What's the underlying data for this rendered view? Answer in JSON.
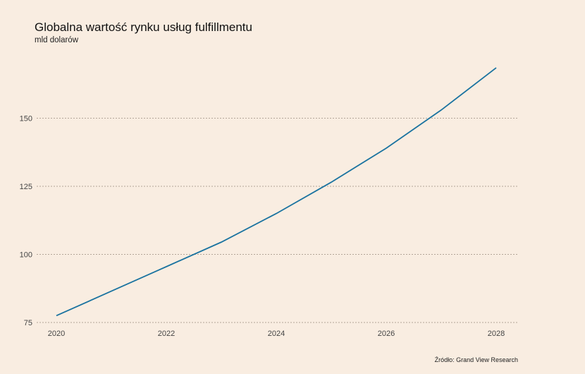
{
  "chart_data": {
    "type": "line",
    "title": "Globalna wartość rynku usług fulfillmentu",
    "subtitle": "mld dolarów",
    "source": "Źródło: Grand View Research",
    "xlabel": "",
    "ylabel": "",
    "x": [
      2020,
      2021,
      2022,
      2023,
      2024,
      2025,
      2026,
      2027,
      2028
    ],
    "series": [
      {
        "values": [
          77.5,
          86.5,
          95.5,
          104.5,
          115,
          126.5,
          139,
          153,
          168.5
        ]
      }
    ],
    "xlim": [
      2020,
      2028
    ],
    "ylim": [
      75,
      170
    ],
    "xticks": [
      "2020",
      "2022",
      "2024",
      "2026",
      "2028"
    ],
    "yticks": [
      "75",
      "100",
      "125",
      "150"
    ],
    "grid": true,
    "line_color": "#1a73a0"
  }
}
